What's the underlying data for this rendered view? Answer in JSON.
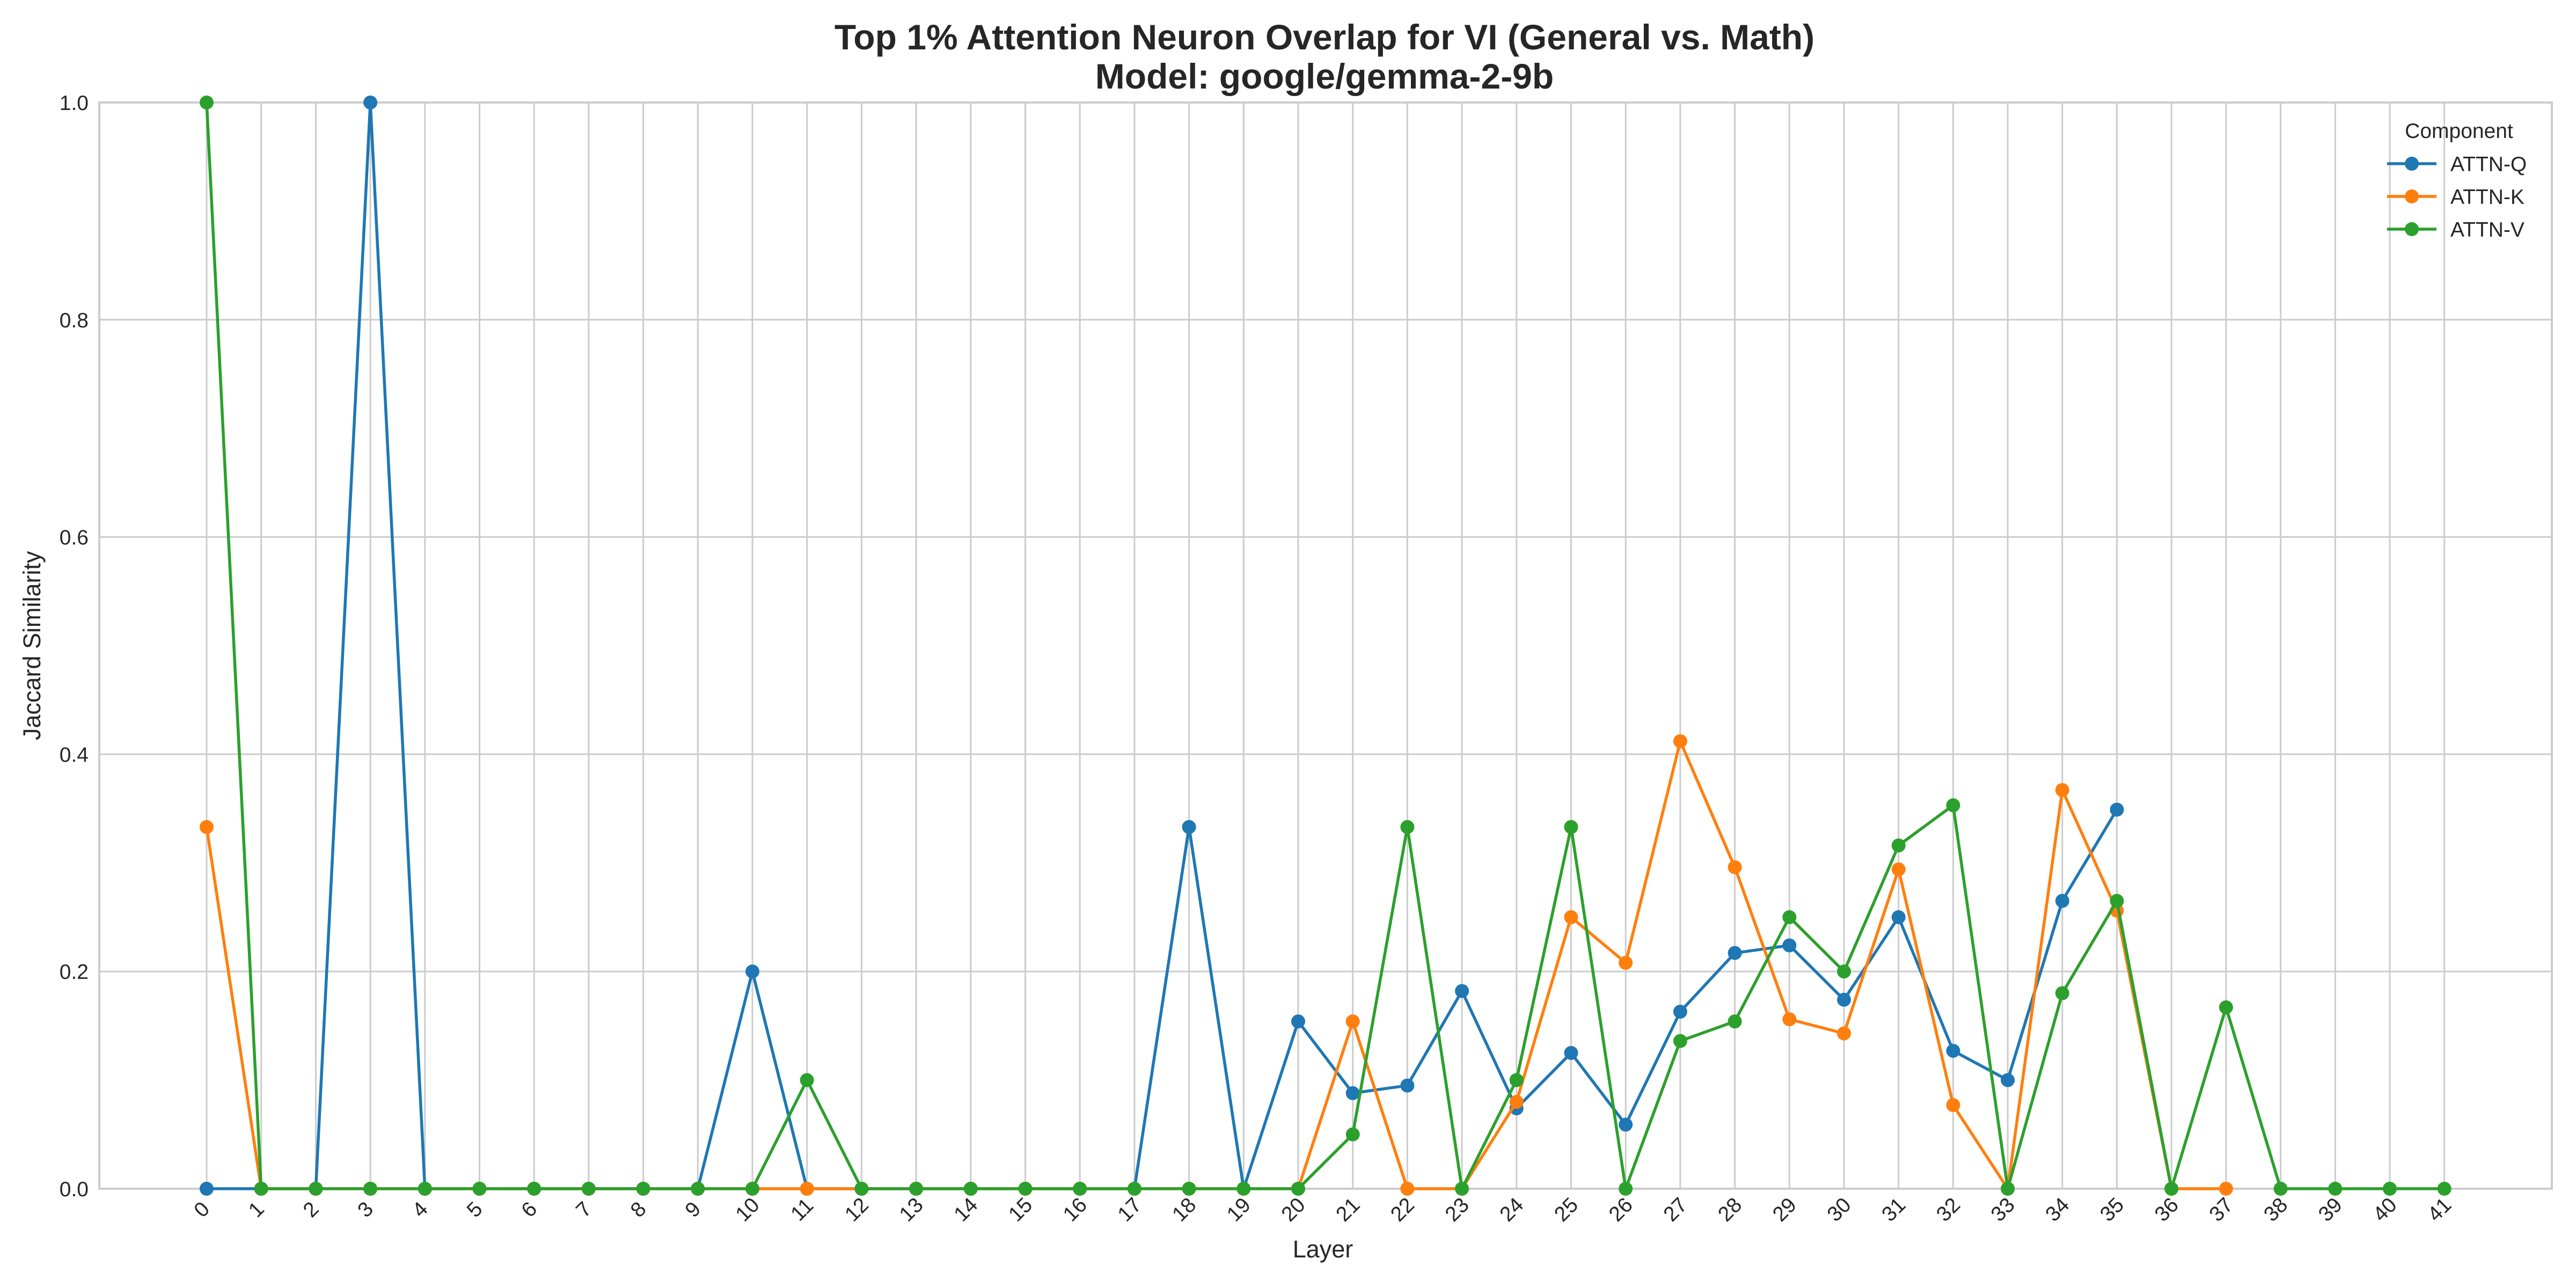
{
  "chart_data": {
    "type": "line",
    "title": "Top 1% Attention Neuron Overlap for VI (General vs. Math)",
    "subtitle": "Model: google/gemma-2-9b",
    "xlabel": "Layer",
    "ylabel": "Jaccard Similarity",
    "ylim": [
      0,
      1.0
    ],
    "yticks": [
      0.0,
      0.2,
      0.4,
      0.6,
      0.8,
      1.0
    ],
    "ytick_labels": [
      "0.0",
      "0.2",
      "0.4",
      "0.6",
      "0.8",
      "1.0"
    ],
    "x": [
      "0",
      "1",
      "2",
      "3",
      "4",
      "5",
      "6",
      "7",
      "8",
      "9",
      "10",
      "11",
      "12",
      "13",
      "14",
      "15",
      "16",
      "17",
      "18",
      "19",
      "20",
      "21",
      "22",
      "23",
      "24",
      "25",
      "26",
      "27",
      "28",
      "29",
      "30",
      "31",
      "32",
      "33",
      "34",
      "35",
      "36",
      "37",
      "38",
      "39",
      "40",
      "41"
    ],
    "grid": true,
    "legend": {
      "title": "Component",
      "position": "top-right"
    },
    "series": [
      {
        "name": "ATTN-Q",
        "color": "#1f77b4",
        "values": [
          0,
          0,
          0,
          1.0,
          0,
          0,
          0,
          0,
          0,
          0,
          0.2,
          0,
          0,
          0,
          0,
          0,
          0,
          0,
          0.333,
          0,
          0.154,
          0.088,
          0.095,
          0.182,
          0.074,
          0.125,
          0.059,
          0.163,
          0.217,
          0.224,
          0.174,
          0.25,
          0.127,
          0.1,
          0.265,
          0.349,
          null,
          null,
          null,
          null,
          null,
          null
        ]
      },
      {
        "name": "ATTN-K",
        "color": "#ff7f0e",
        "values": [
          0.333,
          0,
          0,
          0,
          0,
          0,
          0,
          0,
          0,
          0,
          0,
          0,
          0,
          0,
          0,
          0,
          0,
          0,
          0,
          0,
          0,
          0.154,
          0,
          0,
          0.08,
          0.25,
          0.208,
          0.412,
          0.296,
          0.156,
          0.143,
          0.294,
          0.077,
          0,
          0.367,
          0.256,
          0,
          0,
          null,
          null,
          null,
          null
        ]
      },
      {
        "name": "ATTN-V",
        "color": "#2ca02c",
        "values": [
          1.0,
          0,
          0,
          0,
          0,
          0,
          0,
          0,
          0,
          0,
          0,
          0.1,
          0,
          0,
          0,
          0,
          0,
          0,
          0,
          0,
          0,
          0.05,
          0.333,
          0,
          0.1,
          0.333,
          0,
          0.136,
          0.154,
          0.25,
          0.2,
          0.316,
          0.353,
          0,
          0.18,
          0.265,
          0,
          0.167,
          0,
          0,
          0,
          0
        ]
      }
    ]
  }
}
